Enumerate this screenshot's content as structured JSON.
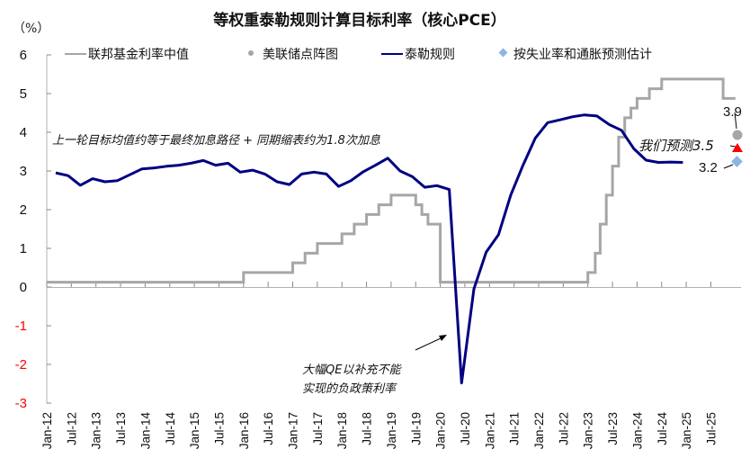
{
  "chart_data": {
    "type": "line",
    "title": "等权重泰勒规则计算目标利率（核心PCE）",
    "unit_label": "（%）",
    "ylim": [
      -3,
      6
    ],
    "yticks": [
      6,
      5,
      4,
      3,
      2,
      1,
      0,
      -1,
      -2,
      -3
    ],
    "negative_tick_color": "#ff0000",
    "xticks": [
      "Jan-12",
      "Jul-12",
      "Jan-13",
      "Jul-13",
      "Jan-14",
      "Jul-14",
      "Jan-15",
      "Jul-15",
      "Jan-16",
      "Jul-16",
      "Jan-17",
      "Jul-17",
      "Jan-18",
      "Jul-18",
      "Jan-19",
      "Jul-19",
      "Jan-20",
      "Jul-20",
      "Jan-21",
      "Jul-21",
      "Jan-22",
      "Jul-22",
      "Jan-23",
      "Jul-23",
      "Jan-24",
      "Jul-24",
      "Jan-25",
      "Jul-25"
    ],
    "grid": false,
    "legend_position": "top",
    "legend": [
      {
        "label": "联邦基金利率中值",
        "type": "line",
        "color": "#a6a6a6"
      },
      {
        "label": "美联储点阵图",
        "type": "dot",
        "color": "#a6a6a6"
      },
      {
        "label": "泰勒规则",
        "type": "line",
        "color": "#000080"
      },
      {
        "label": "按失业率和通胀预测估计",
        "type": "diamond",
        "color": "#8eb4e3"
      }
    ],
    "series": [
      {
        "name": "泰勒规则",
        "color": "#000080",
        "x_index": [
          0,
          0.5,
          1,
          1.5,
          2,
          2.5,
          3,
          3.5,
          4,
          4.5,
          5,
          5.5,
          6,
          6.5,
          7,
          7.5,
          8,
          8.5,
          9,
          9.5,
          10,
          10.5,
          11,
          11.5,
          12,
          12.5,
          13,
          13.5,
          14,
          14.5,
          15,
          15.5,
          16,
          16.5,
          17,
          17.5,
          18,
          18.5,
          19,
          19.5,
          20,
          20.5,
          21,
          21.5,
          22,
          22.5,
          23,
          23.5,
          24,
          24.5,
          25,
          25.5
        ],
        "values": [
          2.95,
          2.88,
          2.63,
          2.8,
          2.72,
          2.75,
          2.9,
          3.05,
          3.08,
          3.12,
          3.15,
          3.2,
          3.27,
          3.15,
          3.2,
          2.97,
          3.02,
          2.92,
          2.72,
          2.65,
          2.92,
          2.97,
          2.92,
          2.6,
          2.75,
          2.98,
          3.15,
          3.33,
          3.0,
          2.85,
          2.58,
          2.62,
          2.52,
          -2.48,
          -0.05,
          0.9,
          1.35,
          2.38,
          3.15,
          3.85,
          4.25,
          4.32,
          4.4,
          4.45,
          4.42,
          4.2,
          4.05,
          3.58,
          3.28,
          3.22,
          3.23,
          3.22
        ]
      },
      {
        "name": "联邦基金利率中值",
        "color": "#a6a6a6",
        "type": "step",
        "steps": [
          [
            0,
            0.125
          ],
          [
            8,
            0.375
          ],
          [
            10,
            0.625
          ],
          [
            10.5,
            0.875
          ],
          [
            11,
            1.125
          ],
          [
            12,
            1.375
          ],
          [
            12.5,
            1.625
          ],
          [
            13,
            1.875
          ],
          [
            13.5,
            2.125
          ],
          [
            14,
            2.375
          ],
          [
            15,
            2.125
          ],
          [
            15.25,
            1.875
          ],
          [
            15.5,
            1.625
          ],
          [
            16,
            0.125
          ],
          [
            22,
            0.375
          ],
          [
            22.3,
            0.875
          ],
          [
            22.5,
            1.625
          ],
          [
            22.75,
            2.375
          ],
          [
            23,
            3.125
          ],
          [
            23.25,
            3.875
          ],
          [
            23.5,
            4.375
          ],
          [
            23.75,
            4.625
          ],
          [
            24,
            4.875
          ],
          [
            24.5,
            5.125
          ],
          [
            25,
            5.375
          ],
          [
            27.5,
            4.875
          ],
          [
            28,
            4.875
          ]
        ]
      },
      {
        "name": "美联储点阵图",
        "type": "dot",
        "color": "#a6a6a6",
        "x_index": 33.2,
        "value": 3.9,
        "label": "3.9"
      },
      {
        "name": "我们预测",
        "type": "triangle",
        "color": "#ff0000",
        "x_index": 33.2,
        "value": 3.5,
        "label": "我们预测3.5"
      },
      {
        "name": "按失业率和通胀预测估计",
        "type": "diamond",
        "color": "#8eb4e3",
        "x_index": 33.2,
        "value": 3.2,
        "label": "3.2"
      }
    ],
    "annotations": [
      {
        "text": "上一轮目标均值约等于最终加息路径 + 同期缩表约为1.8次加息"
      },
      {
        "text": "大幅QE以补充不能",
        "line": 1
      },
      {
        "text": "实现的负政策利率",
        "line": 2
      }
    ]
  }
}
